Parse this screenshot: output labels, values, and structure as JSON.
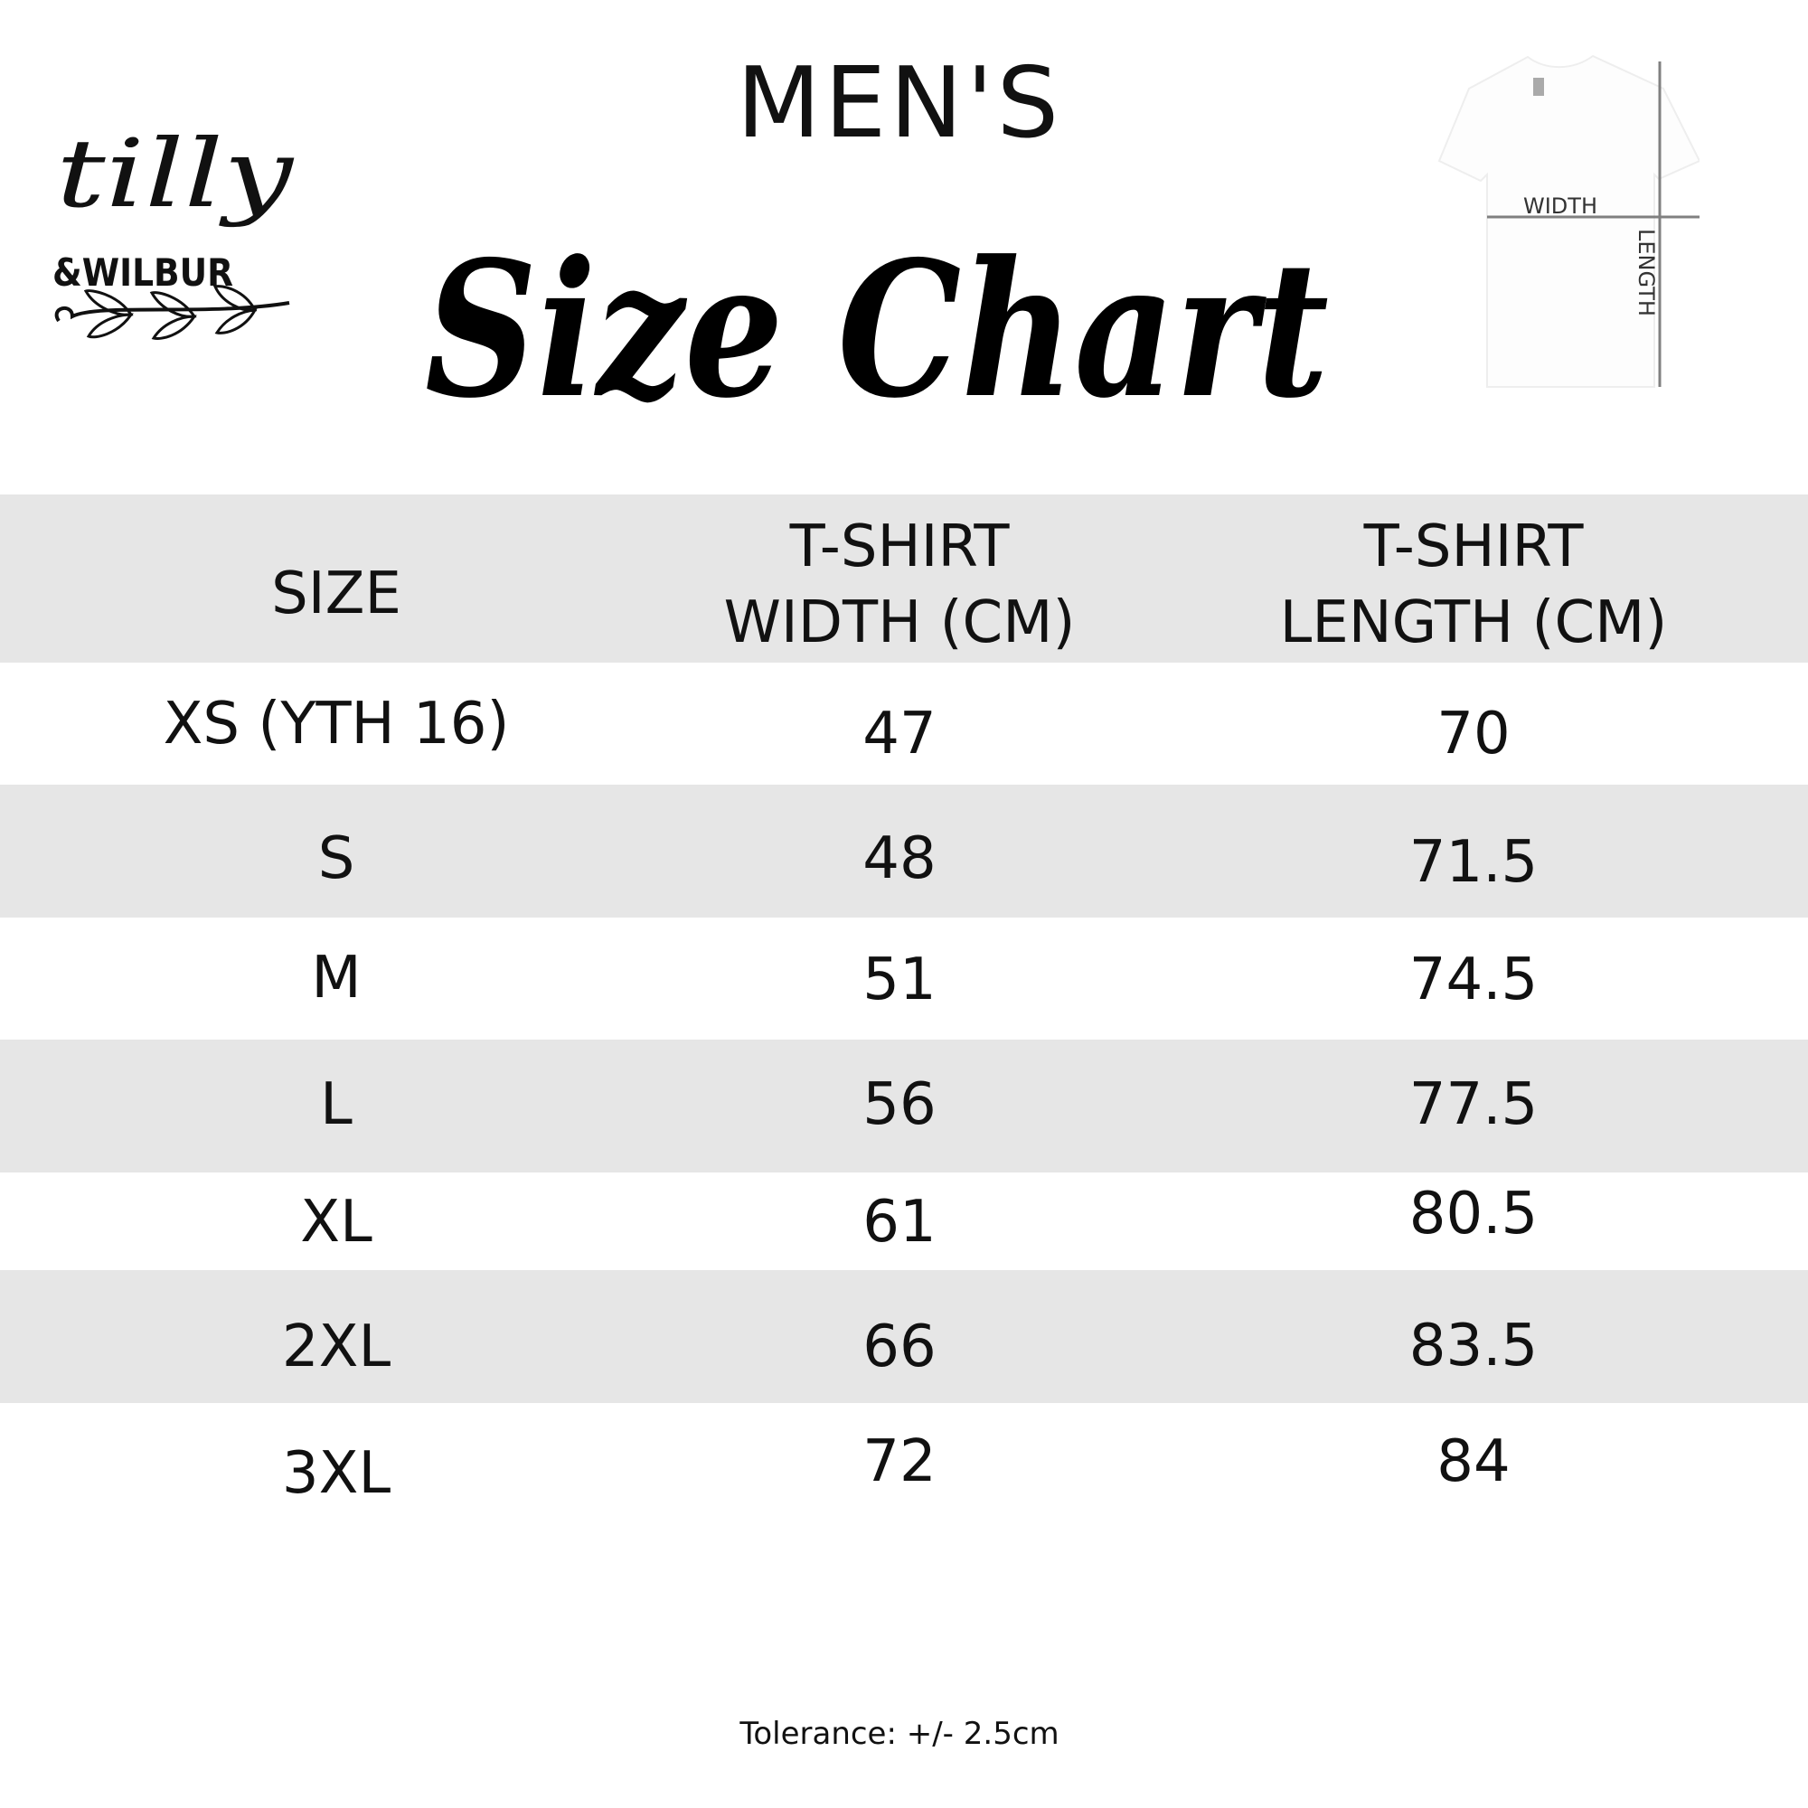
{
  "brand": {
    "logo_text": "tilly & WILBUR"
  },
  "header": {
    "subtitle": "MEN'S",
    "title": "Size Chart"
  },
  "diagram": {
    "width_label": "WIDTH",
    "length_label": "LENGTH",
    "shirt_color": "#ffffff",
    "line_color": "#808080"
  },
  "table": {
    "band_color": "#e6e6e6",
    "columns": [
      "SIZE",
      "T-SHIRT\nWIDTH (CM)",
      "T-SHIRT\nLENGTH (CM)"
    ],
    "rows": [
      {
        "size": "XS (YTH 16)",
        "width": "47",
        "length": "70"
      },
      {
        "size": "S",
        "width": "48",
        "length": "71.5"
      },
      {
        "size": "M",
        "width": "51",
        "length": "74.5"
      },
      {
        "size": "L",
        "width": "56",
        "length": "77.5"
      },
      {
        "size": "XL",
        "width": "61",
        "length": "80.5"
      },
      {
        "size": "2XL",
        "width": "66",
        "length": "83.5"
      },
      {
        "size": "3XL",
        "width": "72",
        "length": "84"
      }
    ]
  },
  "footer": {
    "tolerance": "Tolerance: +/- 2.5cm"
  }
}
